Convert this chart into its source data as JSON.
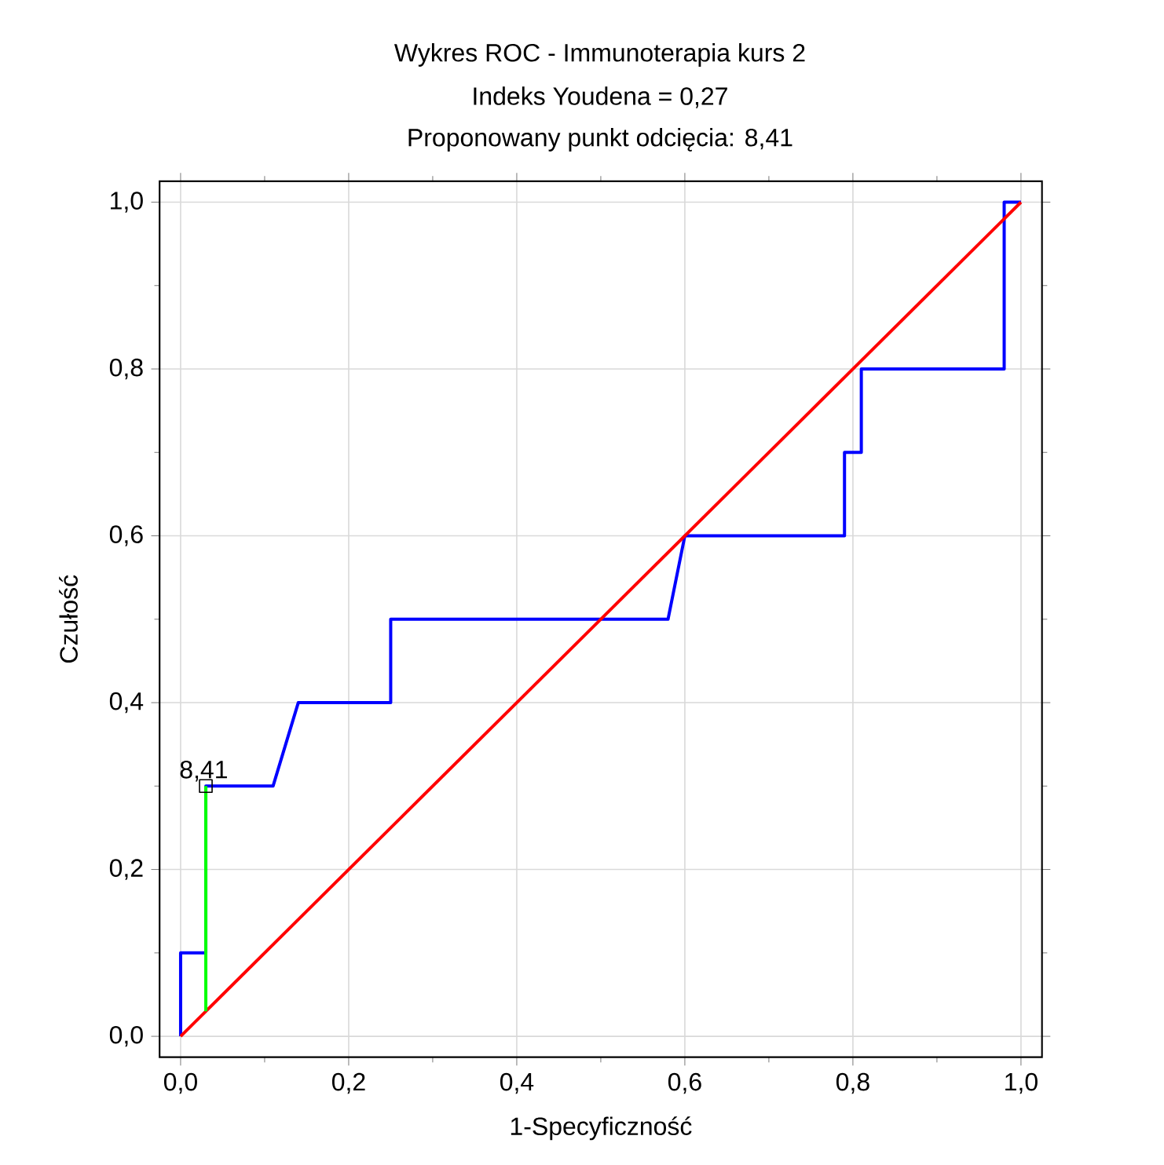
{
  "chart_data": {
    "type": "line",
    "title": "Wykres ROC - Immunoterapia kurs 2",
    "subtitle": "Indeks Youdena  = 0,27",
    "xlabel": "1-Specyficzność",
    "ylabel": "Czułość",
    "annotations": [
      "Proponowany punkt odcięcia: 8,41",
      {
        "text": "8,41",
        "x": 0.03,
        "y": 0.3
      }
    ],
    "series": [
      {
        "color": "#0000ff",
        "x": [
          0,
          0,
          0.03,
          0.03,
          0.11,
          0.14,
          0.25,
          0.25,
          0.58,
          0.6,
          0.79,
          0.79,
          0.81,
          0.81,
          0.98,
          0.98,
          1
        ],
        "values": [
          0,
          0.1,
          0.1,
          0.3,
          0.3,
          0.4,
          0.4,
          0.5,
          0.5,
          0.6,
          0.6,
          0.7,
          0.7,
          0.8,
          0.8,
          1,
          1
        ]
      },
      {
        "color": "#ff0000",
        "x": [
          0,
          1
        ],
        "values": [
          0,
          1
        ]
      },
      {
        "color": "#00ff00",
        "x": [
          0.03,
          0.03
        ],
        "values": [
          0.03,
          0.3
        ]
      },
      {
        "type": "scatter",
        "marker": "square",
        "color": "#000000",
        "x": [
          0.03
        ],
        "values": [
          0.3
        ]
      }
    ],
    "xlim": [
      -0.025,
      1.025
    ],
    "ylim": [
      -0.025,
      1.025
    ],
    "xticks": [
      {
        "value": 0,
        "label": "0,0"
      },
      {
        "value": 0.2,
        "label": "0,2"
      },
      {
        "value": 0.4,
        "label": "0,4"
      },
      {
        "value": 0.6,
        "label": "0,6"
      },
      {
        "value": 0.8,
        "label": "0,8"
      },
      {
        "value": 1,
        "label": "1,0"
      }
    ],
    "yticks": [
      {
        "value": 0,
        "label": "0,0"
      },
      {
        "value": 0.2,
        "label": "0,2"
      },
      {
        "value": 0.4,
        "label": "0,4"
      },
      {
        "value": 0.6,
        "label": "0,6"
      },
      {
        "value": 0.8,
        "label": "0,8"
      },
      {
        "value": 1,
        "label": "1,0"
      }
    ],
    "grid": true
  }
}
